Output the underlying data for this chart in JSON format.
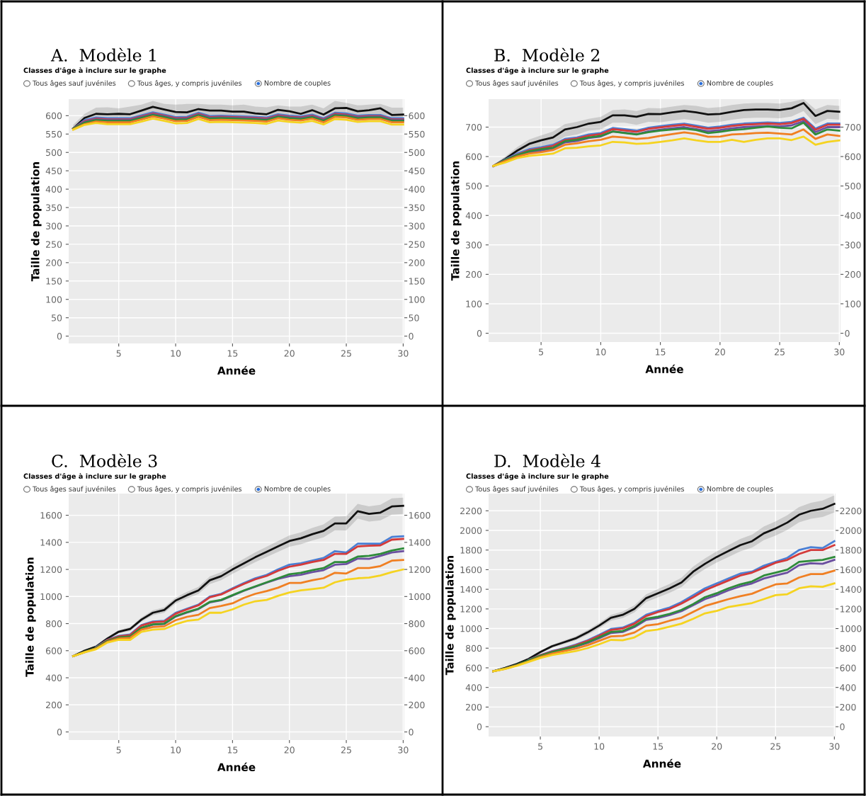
{
  "chart_data": [
    {
      "type": "line",
      "title": "A.  Modèle 1",
      "xlabel": "Année",
      "ylabel": "Taille de population",
      "annotations": [
        "Classes d'âge à inclure sur le graphe",
        "Tous âges sauf juvéniles",
        "Tous âges, y compris juvéniles",
        "Nombre de couples"
      ],
      "x": [
        1,
        2,
        3,
        4,
        5,
        6,
        7,
        8,
        9,
        10,
        11,
        12,
        13,
        14,
        15,
        16,
        17,
        18,
        19,
        20,
        21,
        22,
        23,
        24,
        25,
        26,
        27,
        28,
        29,
        30
      ],
      "xlim": [
        0.6,
        30.1
      ],
      "xticks": [
        5,
        10,
        15,
        20,
        25,
        30
      ],
      "ylim": [
        -20,
        645
      ],
      "yticks": [
        0,
        50,
        100,
        150,
        200,
        250,
        300,
        350,
        400,
        450,
        500,
        550,
        600
      ],
      "y2lim": [
        -20,
        645
      ],
      "y2ticks": [
        0,
        50,
        100,
        150,
        200,
        250,
        300,
        350,
        400,
        450,
        500,
        550,
        600
      ],
      "grid": true,
      "series": [
        {
          "color": "#111111",
          "values": [
            565,
            594,
            605,
            604,
            605,
            604,
            614,
            624,
            617,
            610,
            609,
            618,
            614,
            614,
            611,
            611,
            606,
            604,
            616,
            612,
            605,
            615,
            603,
            620,
            621,
            612,
            615,
            620,
            602,
            603
          ],
          "lower": [
            560,
            585,
            590,
            588,
            590,
            588,
            598,
            608,
            600,
            595,
            593,
            602,
            598,
            598,
            595,
            594,
            590,
            588,
            600,
            598,
            590,
            600,
            588,
            604,
            605,
            596,
            600,
            604,
            586,
            587
          ],
          "upper": [
            575,
            605,
            622,
            623,
            620,
            625,
            630,
            640,
            632,
            630,
            632,
            632,
            630,
            630,
            628,
            630,
            625,
            623,
            628,
            625,
            625,
            630,
            620,
            640,
            635,
            628,
            630,
            632,
            622,
            622
          ]
        },
        {
          "color": "#4a7fd4",
          "values": [
            565,
            588,
            595,
            593,
            593,
            593,
            601,
            609,
            603,
            596,
            597,
            608,
            599,
            600,
            599,
            598,
            597,
            595,
            604,
            600,
            598,
            603,
            593,
            608,
            606,
            600,
            602,
            602,
            593,
            593
          ]
        },
        {
          "color": "#d43a3a",
          "values": [
            565,
            585,
            592,
            590,
            590,
            590,
            598,
            606,
            600,
            593,
            594,
            605,
            596,
            597,
            596,
            595,
            594,
            592,
            601,
            597,
            595,
            600,
            590,
            605,
            603,
            597,
            599,
            599,
            590,
            590
          ]
        },
        {
          "color": "#6b4fa0",
          "values": [
            565,
            583,
            590,
            588,
            588,
            588,
            596,
            604,
            598,
            591,
            592,
            603,
            594,
            595,
            594,
            593,
            592,
            590,
            599,
            595,
            593,
            598,
            588,
            603,
            601,
            595,
            597,
            597,
            588,
            588
          ]
        },
        {
          "color": "#2e8b3a",
          "values": [
            565,
            581,
            588,
            586,
            586,
            586,
            594,
            602,
            596,
            589,
            590,
            601,
            592,
            593,
            592,
            591,
            590,
            588,
            597,
            593,
            591,
            596,
            586,
            601,
            599,
            593,
            595,
            595,
            586,
            586
          ]
        },
        {
          "color": "#f07f22",
          "values": [
            563,
            577,
            584,
            582,
            582,
            582,
            590,
            598,
            592,
            585,
            586,
            597,
            588,
            589,
            588,
            587,
            586,
            584,
            593,
            589,
            587,
            592,
            582,
            597,
            595,
            589,
            591,
            591,
            582,
            582
          ]
        },
        {
          "color": "#f5d320",
          "values": [
            562,
            575,
            580,
            577,
            577,
            577,
            584,
            592,
            586,
            579,
            580,
            591,
            582,
            583,
            582,
            581,
            580,
            578,
            587,
            583,
            581,
            586,
            576,
            591,
            589,
            583,
            585,
            585,
            576,
            576
          ]
        }
      ]
    },
    {
      "type": "line",
      "title": "B.  Modèle 2",
      "xlabel": "Année",
      "ylabel": "Taille de population",
      "annotations": [
        "Classes d'âge à inclure sur le graphe",
        "Tous âges sauf juvéniles",
        "Tous âges, y compris juvéniles",
        "Nombre de couples"
      ],
      "x": [
        1,
        2,
        3,
        4,
        5,
        6,
        7,
        8,
        9,
        10,
        11,
        12,
        13,
        14,
        15,
        16,
        17,
        18,
        19,
        20,
        21,
        22,
        23,
        24,
        25,
        26,
        27,
        28,
        29,
        30
      ],
      "xlim": [
        0.6,
        30.1
      ],
      "xticks": [
        5,
        10,
        15,
        20,
        25,
        30
      ],
      "ylim": [
        -30,
        795
      ],
      "yticks": [
        0,
        100,
        200,
        300,
        400,
        500,
        600,
        700
      ],
      "y2lim": [
        -30,
        795
      ],
      "y2ticks": [
        0,
        100,
        200,
        300,
        400,
        500,
        600,
        700
      ],
      "grid": true,
      "series": [
        {
          "color": "#111111",
          "values": [
            568,
            592,
            620,
            643,
            655,
            665,
            692,
            700,
            712,
            718,
            740,
            740,
            735,
            745,
            744,
            750,
            755,
            750,
            743,
            745,
            752,
            758,
            760,
            760,
            758,
            764,
            782,
            738,
            755,
            752
          ],
          "lower": [
            565,
            582,
            605,
            625,
            635,
            642,
            668,
            675,
            688,
            692,
            715,
            715,
            708,
            718,
            716,
            722,
            727,
            722,
            715,
            718,
            725,
            730,
            732,
            732,
            730,
            736,
            755,
            710,
            728,
            725
          ],
          "upper": [
            572,
            600,
            632,
            658,
            672,
            685,
            710,
            718,
            728,
            735,
            758,
            760,
            755,
            765,
            764,
            770,
            775,
            772,
            765,
            768,
            775,
            780,
            782,
            782,
            780,
            786,
            795,
            760,
            775,
            772
          ]
        },
        {
          "color": "#4a7fd4",
          "values": [
            568,
            590,
            610,
            625,
            632,
            640,
            660,
            665,
            675,
            680,
            697,
            693,
            688,
            698,
            703,
            708,
            712,
            705,
            698,
            702,
            708,
            712,
            714,
            716,
            714,
            718,
            732,
            695,
            712,
            712
          ]
        },
        {
          "color": "#d43a3a",
          "values": [
            568,
            588,
            606,
            621,
            628,
            636,
            656,
            661,
            671,
            676,
            693,
            689,
            684,
            694,
            699,
            704,
            708,
            701,
            694,
            698,
            704,
            708,
            710,
            712,
            710,
            714,
            728,
            691,
            708,
            708
          ]
        },
        {
          "color": "#6b4fa0",
          "values": [
            567,
            584,
            600,
            614,
            620,
            628,
            648,
            653,
            663,
            668,
            685,
            681,
            676,
            686,
            691,
            696,
            700,
            693,
            686,
            690,
            696,
            700,
            702,
            704,
            702,
            706,
            720,
            683,
            700,
            700
          ]
        },
        {
          "color": "#2e8b3a",
          "values": [
            568,
            588,
            605,
            618,
            625,
            630,
            652,
            657,
            665,
            670,
            685,
            680,
            675,
            683,
            688,
            692,
            695,
            690,
            680,
            684,
            690,
            693,
            698,
            702,
            698,
            696,
            715,
            675,
            692,
            688
          ]
        },
        {
          "color": "#f07f22",
          "values": [
            568,
            585,
            600,
            610,
            615,
            622,
            640,
            645,
            652,
            657,
            668,
            665,
            660,
            663,
            670,
            676,
            682,
            677,
            667,
            668,
            675,
            677,
            680,
            681,
            678,
            675,
            692,
            660,
            675,
            670
          ]
        },
        {
          "color": "#f5d320",
          "values": [
            568,
            580,
            595,
            602,
            606,
            610,
            628,
            630,
            635,
            638,
            650,
            648,
            643,
            645,
            650,
            655,
            662,
            655,
            650,
            650,
            657,
            650,
            657,
            662,
            662,
            656,
            668,
            640,
            650,
            655
          ]
        }
      ]
    },
    {
      "type": "line",
      "title": "C.  Modèle 3",
      "xlabel": "Année",
      "ylabel": "Taille de population",
      "annotations": [
        "Classes d'âge à inclure sur le graphe",
        "Tous âges sauf juvéniles",
        "Tous âges, y compris juvéniles",
        "Nombre de couples"
      ],
      "x": [
        1,
        2,
        3,
        4,
        5,
        6,
        7,
        8,
        9,
        10,
        11,
        12,
        13,
        14,
        15,
        16,
        17,
        18,
        19,
        20,
        21,
        22,
        23,
        24,
        25,
        26,
        27,
        28,
        29,
        30
      ],
      "xlim": [
        0.6,
        30.1
      ],
      "xticks": [
        5,
        10,
        15,
        20,
        25,
        30
      ],
      "ylim": [
        -60,
        1760
      ],
      "yticks": [
        0,
        200,
        400,
        600,
        800,
        1000,
        1200,
        1400,
        1600
      ],
      "y2lim": [
        -60,
        1760
      ],
      "y2ticks": [
        0,
        200,
        400,
        600,
        800,
        1000,
        1200,
        1400,
        1600
      ],
      "grid": true,
      "series": [
        {
          "color": "#111111",
          "values": [
            560,
            600,
            630,
            690,
            740,
            760,
            830,
            880,
            900,
            970,
            1010,
            1045,
            1120,
            1150,
            1200,
            1245,
            1290,
            1330,
            1370,
            1410,
            1430,
            1460,
            1485,
            1540,
            1540,
            1630,
            1610,
            1620,
            1665,
            1670
          ],
          "lower": [
            557,
            595,
            622,
            680,
            728,
            746,
            814,
            862,
            880,
            948,
            986,
            1019,
            1092,
            1120,
            1168,
            1211,
            1254,
            1292,
            1330,
            1368,
            1386,
            1414,
            1437,
            1490,
            1488,
            1576,
            1554,
            1562,
            1605,
            1610
          ],
          "upper": [
            563,
            605,
            638,
            700,
            752,
            774,
            846,
            898,
            920,
            992,
            1034,
            1071,
            1148,
            1180,
            1232,
            1279,
            1326,
            1368,
            1410,
            1452,
            1474,
            1506,
            1533,
            1590,
            1592,
            1684,
            1666,
            1678,
            1725,
            1730
          ]
        },
        {
          "color": "#4a7fd4",
          "values": [
            null,
            null,
            625,
            680,
            710,
            720,
            790,
            815,
            820,
            880,
            910,
            940,
            1000,
            1020,
            1060,
            1100,
            1135,
            1160,
            1200,
            1235,
            1245,
            1265,
            1285,
            1335,
            1325,
            1390,
            1390,
            1390,
            1440,
            1445
          ]
        },
        {
          "color": "#d43a3a",
          "values": [
            null,
            null,
            622,
            678,
            705,
            715,
            785,
            810,
            815,
            873,
            905,
            935,
            995,
            1015,
            1055,
            1093,
            1127,
            1152,
            1190,
            1220,
            1235,
            1255,
            1270,
            1315,
            1315,
            1370,
            1375,
            1378,
            1420,
            1425
          ]
        },
        {
          "color": "#6b4fa0",
          "values": [
            560,
            589,
            617,
            669,
            695,
            702,
            767,
            792,
            797,
            852,
            882,
            907,
            957,
            972,
            1007,
            1042,
            1072,
            1102,
            1130,
            1150,
            1160,
            1180,
            1195,
            1235,
            1240,
            1280,
            1278,
            1300,
            1325,
            1335
          ]
        },
        {
          "color": "#2e8b3a",
          "values": [
            560,
            592,
            620,
            672,
            698,
            705,
            770,
            795,
            800,
            855,
            885,
            910,
            960,
            975,
            1010,
            1045,
            1075,
            1105,
            1135,
            1165,
            1175,
            1195,
            1210,
            1255,
            1255,
            1295,
            1300,
            1315,
            1340,
            1355
          ]
        },
        {
          "color": "#f07f22",
          "values": [
            560,
            590,
            615,
            665,
            690,
            695,
            755,
            775,
            780,
            825,
            850,
            865,
            915,
            930,
            950,
            990,
            1020,
            1040,
            1065,
            1100,
            1100,
            1120,
            1135,
            1175,
            1170,
            1210,
            1210,
            1225,
            1265,
            1270
          ]
        },
        {
          "color": "#f5d320",
          "values": [
            560,
            588,
            610,
            660,
            680,
            680,
            740,
            755,
            760,
            795,
            820,
            830,
            880,
            880,
            905,
            940,
            965,
            975,
            1005,
            1030,
            1045,
            1055,
            1065,
            1105,
            1125,
            1135,
            1140,
            1155,
            1180,
            1200
          ]
        }
      ]
    },
    {
      "type": "line",
      "title": "D.  Modèle 4",
      "xlabel": "Année",
      "ylabel": "Taille de population",
      "annotations": [
        "Classes d'âge à inclure sur le graphe",
        "Tous âges sauf juvéniles",
        "Tous âges, y compris juvéniles",
        "Nombre de couples"
      ],
      "x": [
        1,
        2,
        3,
        4,
        5,
        6,
        7,
        8,
        9,
        10,
        11,
        12,
        13,
        14,
        15,
        16,
        17,
        18,
        19,
        20,
        21,
        22,
        23,
        24,
        25,
        26,
        27,
        28,
        29,
        30
      ],
      "xlim": [
        0.6,
        30.1
      ],
      "xticks": [
        5,
        10,
        15,
        20,
        25,
        30
      ],
      "ylim": [
        -100,
        2375
      ],
      "yticks": [
        0,
        200,
        400,
        600,
        800,
        1000,
        1200,
        1400,
        1600,
        1800,
        2000,
        2200
      ],
      "y2lim": [
        -100,
        2375
      ],
      "y2ticks": [
        0,
        200,
        400,
        600,
        800,
        1000,
        1200,
        1400,
        1600,
        1800,
        2000,
        2200
      ],
      "grid": true,
      "series": [
        {
          "color": "#111111",
          "values": [
            565,
            600,
            640,
            690,
            760,
            820,
            860,
            900,
            960,
            1030,
            1110,
            1140,
            1200,
            1310,
            1360,
            1410,
            1470,
            1580,
            1660,
            1730,
            1790,
            1850,
            1890,
            1970,
            2020,
            2080,
            2160,
            2200,
            2220,
            2270
          ],
          "lower": [
            562,
            595,
            632,
            680,
            747,
            804,
            842,
            879,
            936,
            1003,
            1080,
            1107,
            1164,
            1271,
            1318,
            1365,
            1422,
            1529,
            1606,
            1673,
            1730,
            1787,
            1824,
            1901,
            1948,
            2005,
            2082,
            2119,
            2136,
            2183
          ],
          "upper": [
            568,
            605,
            648,
            700,
            773,
            836,
            878,
            921,
            984,
            1057,
            1140,
            1173,
            1236,
            1349,
            1402,
            1455,
            1518,
            1631,
            1714,
            1787,
            1850,
            1913,
            1956,
            2039,
            2092,
            2155,
            2238,
            2281,
            2304,
            2357
          ]
        },
        {
          "color": "#4a7fd4",
          "values": [
            null,
            null,
            null,
            680,
            730,
            770,
            800,
            835,
            880,
            935,
            995,
            1010,
            1060,
            1140,
            1180,
            1215,
            1270,
            1340,
            1410,
            1460,
            1510,
            1560,
            1580,
            1640,
            1680,
            1720,
            1800,
            1830,
            1820,
            1890
          ]
        },
        {
          "color": "#d43a3a",
          "values": [
            null,
            null,
            null,
            678,
            727,
            766,
            795,
            829,
            873,
            926,
            985,
            1000,
            1048,
            1128,
            1168,
            1200,
            1255,
            1320,
            1390,
            1440,
            1490,
            1540,
            1570,
            1620,
            1670,
            1700,
            1760,
            1800,
            1800,
            1850
          ]
        },
        {
          "color": "#6b4fa0",
          "values": [
            565,
            592,
            628,
            672,
            718,
            755,
            785,
            815,
            853,
            902,
            955,
            965,
            1015,
            1088,
            1108,
            1138,
            1178,
            1238,
            1300,
            1340,
            1390,
            1430,
            1460,
            1510,
            1540,
            1570,
            1645,
            1665,
            1660,
            1700
          ]
        },
        {
          "color": "#2e8b3a",
          "values": [
            565,
            593,
            630,
            675,
            722,
            760,
            790,
            820,
            860,
            910,
            965,
            975,
            1025,
            1100,
            1120,
            1150,
            1190,
            1250,
            1320,
            1360,
            1410,
            1450,
            1480,
            1540,
            1570,
            1600,
            1680,
            1690,
            1700,
            1730
          ]
        },
        {
          "color": "#f07f22",
          "values": [
            565,
            590,
            625,
            665,
            710,
            745,
            770,
            795,
            830,
            875,
            920,
            925,
            960,
            1030,
            1045,
            1080,
            1110,
            1170,
            1230,
            1265,
            1300,
            1330,
            1355,
            1405,
            1450,
            1460,
            1520,
            1555,
            1555,
            1590
          ]
        },
        {
          "color": "#f5d320",
          "values": [
            565,
            588,
            620,
            660,
            700,
            730,
            750,
            770,
            800,
            840,
            885,
            880,
            910,
            975,
            990,
            1020,
            1050,
            1100,
            1155,
            1180,
            1220,
            1240,
            1260,
            1300,
            1340,
            1350,
            1410,
            1430,
            1425,
            1460
          ]
        }
      ]
    }
  ]
}
